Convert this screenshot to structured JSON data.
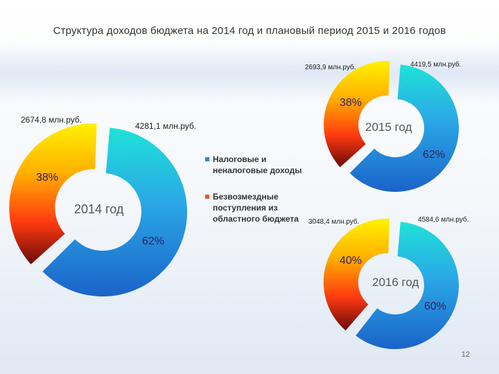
{
  "title": "Структура доходов бюджета на 2014 год и плановый период 2015 и 2016 годов",
  "legend": [
    {
      "label": "Налоговые и неналоговые доходы",
      "color": "#2f86d6"
    },
    {
      "label": "Безвозмездные поступления из областного бюджета",
      "color": "#e8542a"
    }
  ],
  "page_number": "12",
  "chart_data": [
    {
      "type": "pie",
      "center_label": "2014 год",
      "slices": [
        {
          "series": "Налоговые и неналоговые доходы",
          "value_label": "4281,1 млн.руб.",
          "percent": 62,
          "percent_label": "62%"
        },
        {
          "series": "Безвозмездные поступления из областного бюджета",
          "value_label": "2674,8 млн.руб.",
          "percent": 38,
          "percent_label": "38%"
        }
      ]
    },
    {
      "type": "pie",
      "center_label": "2015 год",
      "slices": [
        {
          "series": "Налоговые и неналоговые доходы",
          "value_label": "4419,5 млн.руб.",
          "percent": 62,
          "percent_label": "62%"
        },
        {
          "series": "Безвозмездные поступления из областного бюджета",
          "value_label": "2693,9 млн.руб.",
          "percent": 38,
          "percent_label": "38%"
        }
      ]
    },
    {
      "type": "pie",
      "center_label": "2016 год",
      "slices": [
        {
          "series": "Налоговые и неналоговые доходы",
          "value_label": "4584,6 млн.руб.",
          "percent": 60,
          "percent_label": "60%"
        },
        {
          "series": "Безвозмездные поступления из областного бюджета",
          "value_label": "3048,4 млн.руб.",
          "percent": 40,
          "percent_label": "40%"
        }
      ]
    }
  ]
}
